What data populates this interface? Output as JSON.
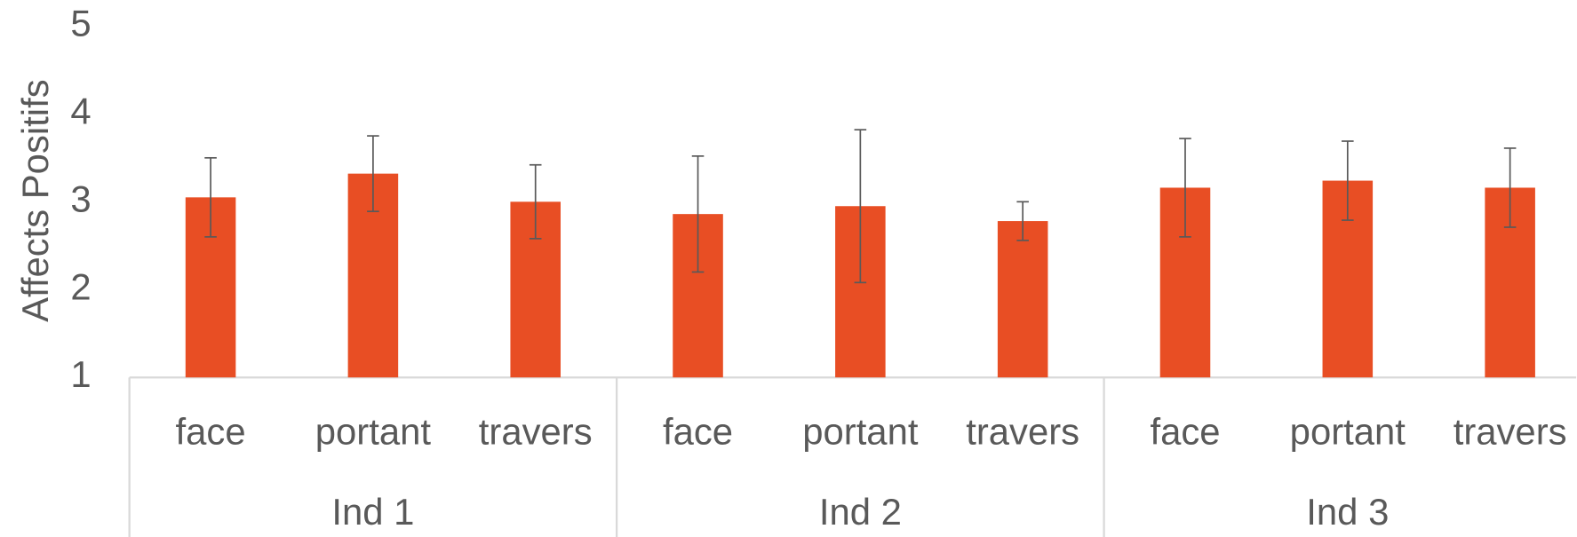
{
  "chart_data": {
    "type": "bar",
    "y_label": "Affects Positifs",
    "categories": [
      "face",
      "portant",
      "travers",
      "face",
      "portant",
      "travers",
      "face",
      "portant",
      "travers"
    ],
    "groups": [
      "Ind 1",
      "Ind 2",
      "Ind 3"
    ],
    "values": [
      3.05,
      3.32,
      3.0,
      2.86,
      2.95,
      2.78,
      3.16,
      3.24,
      3.16
    ],
    "errors": [
      0.45,
      0.43,
      0.42,
      0.66,
      0.87,
      0.22,
      0.56,
      0.45,
      0.45
    ],
    "color": "#e84e24",
    "ylim": [
      1,
      5
    ],
    "yticks": [
      1,
      2,
      3,
      4,
      5
    ]
  }
}
